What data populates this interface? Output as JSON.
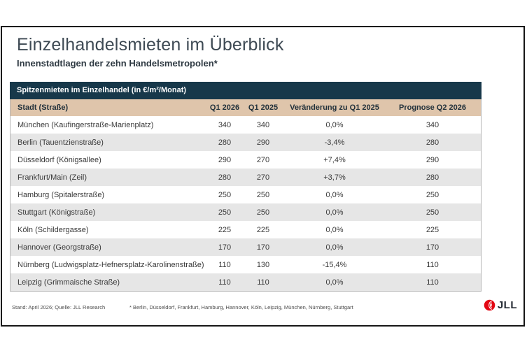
{
  "page": {
    "title": "Einzelhandelsmieten im Überblick",
    "subtitle": "Innenstadtlagen der zehn Handelsmetropolen*"
  },
  "table": {
    "caption": "Spitzenmieten im Einzelhandel (in €/m²/Monat)",
    "columns": [
      "Stadt (Straße)",
      "Q1 2026",
      "Q1 2025",
      "Veränderung zu Q1 2025",
      "Prognose Q2 2026"
    ],
    "rows": [
      {
        "city": "München (Kaufingerstraße-Marienplatz)",
        "q1_2026": "340",
        "q1_2025": "340",
        "change": "0,0%",
        "forecast": "340"
      },
      {
        "city": "Berlin (Tauentzienstraße)",
        "q1_2026": "280",
        "q1_2025": "290",
        "change": "-3,4%",
        "forecast": "280"
      },
      {
        "city": "Düsseldorf (Königsallee)",
        "q1_2026": "290",
        "q1_2025": "270",
        "change": "+7,4%",
        "forecast": "290"
      },
      {
        "city": "Frankfurt/Main (Zeil)",
        "q1_2026": "280",
        "q1_2025": "270",
        "change": "+3,7%",
        "forecast": "280"
      },
      {
        "city": "Hamburg (Spitalerstraße)",
        "q1_2026": "250",
        "q1_2025": "250",
        "change": "0,0%",
        "forecast": "250"
      },
      {
        "city": "Stuttgart (Königstraße)",
        "q1_2026": "250",
        "q1_2025": "250",
        "change": "0,0%",
        "forecast": "250"
      },
      {
        "city": "Köln (Schildergasse)",
        "q1_2026": "225",
        "q1_2025": "225",
        "change": "0,0%",
        "forecast": "225"
      },
      {
        "city": "Hannover (Georgstraße)",
        "q1_2026": "170",
        "q1_2025": "170",
        "change": "0,0%",
        "forecast": "170"
      },
      {
        "city": "Nürnberg (Ludwigsplatz-Hefnersplatz-Karolinenstraße)",
        "q1_2026": "110",
        "q1_2025": "130",
        "change": "-15,4%",
        "forecast": "110"
      },
      {
        "city": "Leipzig (Grimmaische Straße)",
        "q1_2026": "110",
        "q1_2025": "110",
        "change": "0,0%",
        "forecast": "110"
      }
    ]
  },
  "footer": {
    "source": "Stand: April 2026; Quelle: JLL Research",
    "footnote": "* Berlin, Düsseldorf, Frankfurt, Hamburg, Hannover, Köln, Leipzig, München, Nürnberg, Stuttgart",
    "logo_text": "JLL"
  },
  "colors": {
    "header_dark": "#17384a",
    "header_tan": "#dfc5ab",
    "row_alt": "#e6e6e6",
    "logo_red": "#e30613",
    "title_text": "#3e4a54"
  },
  "chart_data": {
    "type": "table",
    "title": "Spitzenmieten im Einzelhandel (in €/m²/Monat)",
    "columns": [
      "Stadt (Straße)",
      "Q1 2026",
      "Q1 2025",
      "Veränderung zu Q1 2025",
      "Prognose Q2 2026"
    ],
    "rows": [
      [
        "München (Kaufingerstraße-Marienplatz)",
        340,
        340,
        "0,0%",
        340
      ],
      [
        "Berlin (Tauentzienstraße)",
        280,
        290,
        "-3,4%",
        280
      ],
      [
        "Düsseldorf (Königsallee)",
        290,
        270,
        "+7,4%",
        290
      ],
      [
        "Frankfurt/Main (Zeil)",
        280,
        270,
        "+3,7%",
        280
      ],
      [
        "Hamburg (Spitalerstraße)",
        250,
        250,
        "0,0%",
        250
      ],
      [
        "Stuttgart (Königstraße)",
        250,
        250,
        "0,0%",
        250
      ],
      [
        "Köln (Schildergasse)",
        225,
        225,
        "0,0%",
        225
      ],
      [
        "Hannover (Georgstraße)",
        170,
        170,
        "0,0%",
        170
      ],
      [
        "Nürnberg (Ludwigsplatz-Hefnersplatz-Karolinenstraße)",
        110,
        130,
        "-15,4%",
        110
      ],
      [
        "Leipzig (Grimmaische Straße)",
        110,
        110,
        "0,0%",
        110
      ]
    ]
  }
}
